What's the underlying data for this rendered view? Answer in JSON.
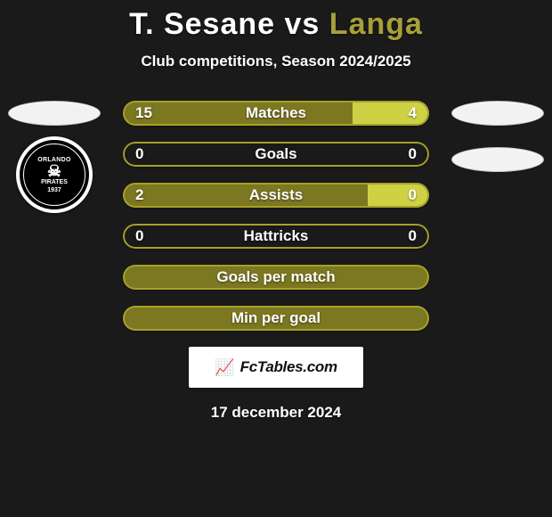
{
  "background_color": "#1a1a1a",
  "title": {
    "player_a": "T. Sesane",
    "vs": "vs",
    "player_b": "Langa",
    "color_a": "#ffffff",
    "color_b": "#a7a039",
    "fontsize": 34
  },
  "subtitle": "Club competitions, Season 2024/2025",
  "club_a": {
    "name": "Orlando Pirates",
    "year": "1937",
    "bg_color": "#000000",
    "inner_border": "#ffffff",
    "text_color": "#ffffff",
    "skull_glyph": "☠"
  },
  "bars": {
    "track_width": 344,
    "border_width": 2,
    "color_a": "#7c7721",
    "color_b": "#cfd145",
    "border_color": "#a6a129",
    "text_color": "#ffffff",
    "rows": [
      {
        "label": "Matches",
        "a": 15,
        "b": 4,
        "show_values": true,
        "a_pct": 75,
        "b_pct": 25
      },
      {
        "label": "Goals",
        "a": 0,
        "b": 0,
        "show_values": true,
        "a_pct": 0,
        "b_pct": 0
      },
      {
        "label": "Assists",
        "a": 2,
        "b": 0,
        "show_values": true,
        "a_pct": 80,
        "b_pct": 20
      },
      {
        "label": "Hattricks",
        "a": 0,
        "b": 0,
        "show_values": true,
        "a_pct": 0,
        "b_pct": 0
      },
      {
        "label": "Goals per match",
        "a": null,
        "b": null,
        "show_values": false,
        "a_pct": 100,
        "b_pct": 0
      },
      {
        "label": "Min per goal",
        "a": null,
        "b": null,
        "show_values": false,
        "a_pct": 100,
        "b_pct": 0
      }
    ]
  },
  "brand": {
    "icon_glyph": "📈",
    "text": "FcTables.com"
  },
  "datestamp": "17 december 2024"
}
